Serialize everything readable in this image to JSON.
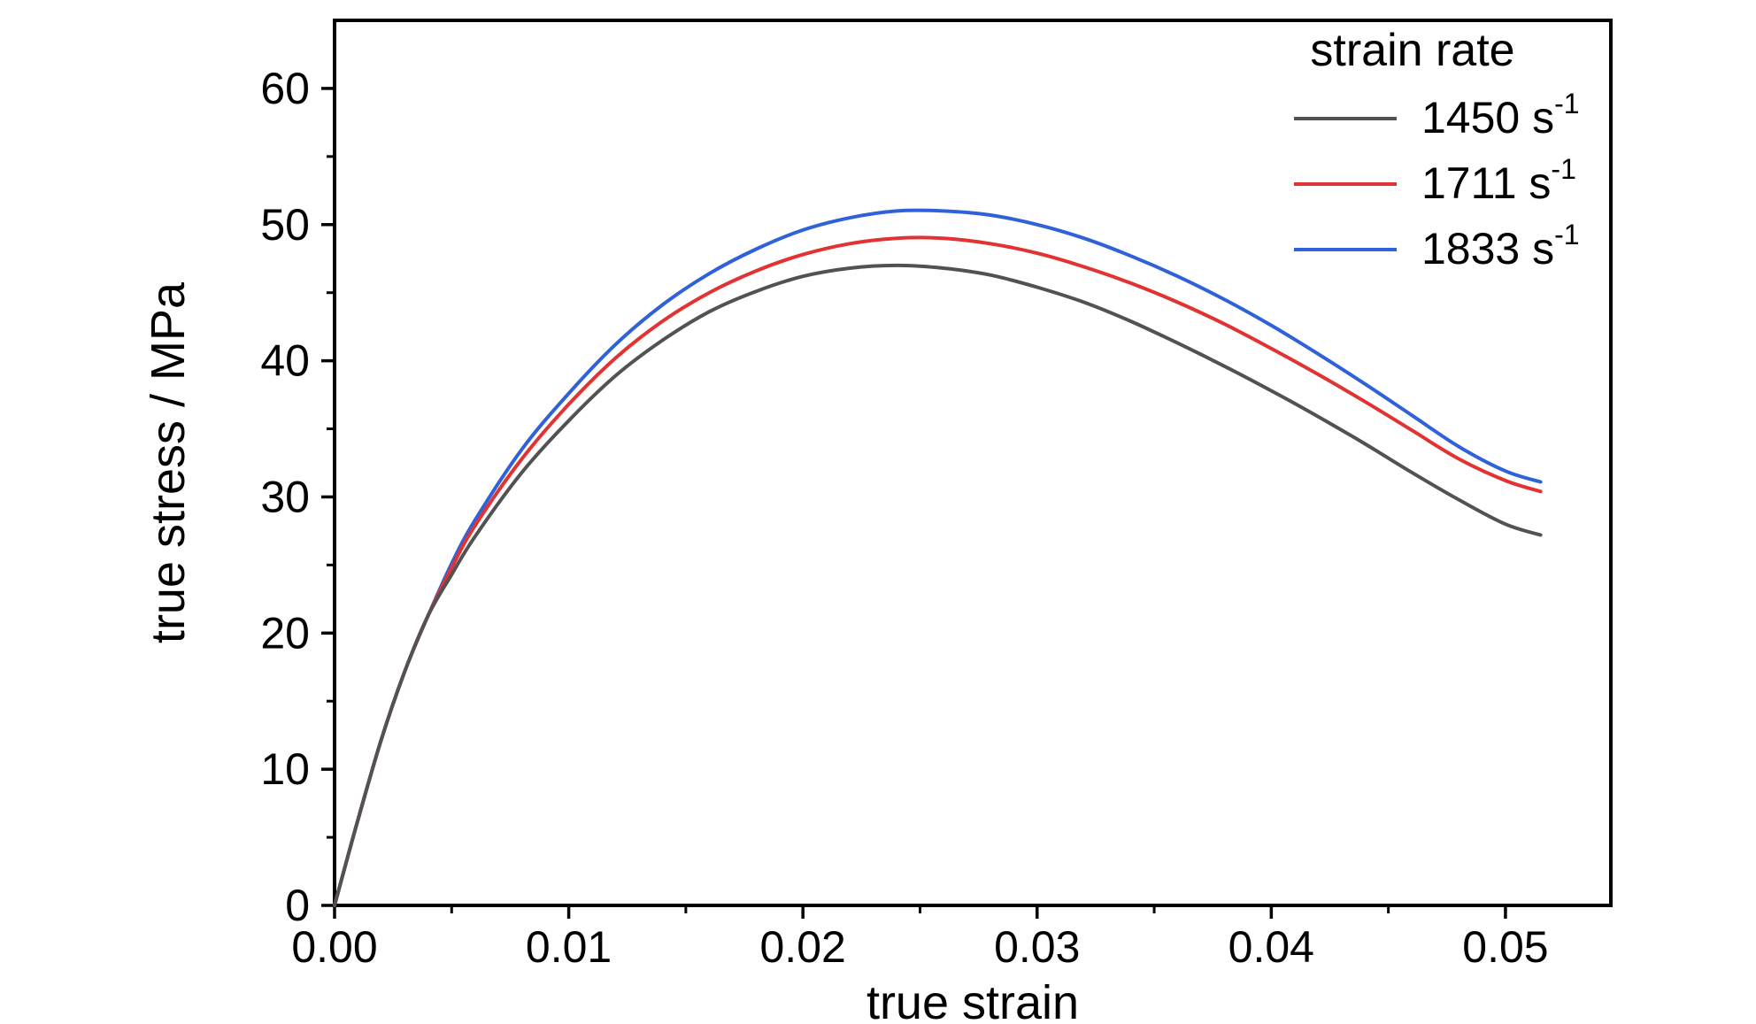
{
  "figure": {
    "background": "#ffffff",
    "text_color": "#000000",
    "axis_color": "#000000"
  },
  "chart_data": {
    "type": "line",
    "title": "",
    "xlabel": "true strain",
    "ylabel": "true stress / MPa",
    "xlim": [
      0,
      0.0545
    ],
    "ylim": [
      0,
      65
    ],
    "xticks": [
      0,
      0.01,
      0.02,
      0.03,
      0.04,
      0.05
    ],
    "xtick_labels": [
      "0.00",
      "0.01",
      "0.02",
      "0.03",
      "0.04",
      "0.05"
    ],
    "yticks": [
      0,
      10,
      20,
      30,
      40,
      50,
      60
    ],
    "ytick_labels": [
      "0",
      "10",
      "20",
      "30",
      "40",
      "50",
      "60"
    ],
    "x_minor_ticks": [
      0.005,
      0.015,
      0.025,
      0.035,
      0.045
    ],
    "y_minor_ticks": [
      5,
      15,
      25,
      35,
      45,
      55
    ],
    "grid": false,
    "legend": {
      "title": "strain rate",
      "position": "top-right",
      "entries": [
        {
          "label": "1450 s",
          "sup": "-1"
        },
        {
          "label": "1711 s",
          "sup": "-1"
        },
        {
          "label": "1833 s",
          "sup": "-1"
        }
      ]
    },
    "series": [
      {
        "name": "1450 s-1",
        "color": "#525252",
        "x": [
          0,
          0.001,
          0.002,
          0.003,
          0.004,
          0.005,
          0.006,
          0.008,
          0.01,
          0.012,
          0.014,
          0.016,
          0.018,
          0.02,
          0.022,
          0.024,
          0.026,
          0.028,
          0.03,
          0.032,
          0.034,
          0.036,
          0.038,
          0.04,
          0.042,
          0.044,
          0.046,
          0.048,
          0.05,
          0.0515
        ],
        "y": [
          0,
          6.3,
          12.2,
          17.2,
          21.3,
          24.3,
          27.1,
          31.8,
          35.6,
          38.9,
          41.5,
          43.6,
          45.1,
          46.2,
          46.8,
          47.0,
          46.8,
          46.3,
          45.4,
          44.3,
          42.9,
          41.3,
          39.6,
          37.8,
          35.9,
          33.9,
          31.8,
          29.8,
          28.0,
          27.2
        ]
      },
      {
        "name": "1711 s-1",
        "color": "#e23231",
        "x": [
          0,
          0.001,
          0.002,
          0.003,
          0.004,
          0.005,
          0.006,
          0.008,
          0.01,
          0.012,
          0.014,
          0.016,
          0.018,
          0.02,
          0.022,
          0.024,
          0.026,
          0.028,
          0.03,
          0.032,
          0.034,
          0.036,
          0.038,
          0.04,
          0.042,
          0.044,
          0.046,
          0.048,
          0.05,
          0.0515
        ],
        "y": [
          0,
          6.3,
          12.2,
          17.2,
          21.3,
          24.8,
          27.9,
          32.8,
          36.8,
          40.2,
          42.9,
          45.0,
          46.6,
          47.8,
          48.6,
          49.0,
          49.0,
          48.6,
          47.9,
          46.9,
          45.7,
          44.3,
          42.7,
          40.9,
          39.0,
          37.0,
          34.9,
          32.8,
          31.2,
          30.4
        ]
      },
      {
        "name": "1833 s-1",
        "color": "#2f62d8",
        "x": [
          0,
          0.001,
          0.002,
          0.003,
          0.004,
          0.005,
          0.006,
          0.008,
          0.01,
          0.012,
          0.014,
          0.016,
          0.018,
          0.02,
          0.022,
          0.024,
          0.026,
          0.028,
          0.03,
          0.032,
          0.034,
          0.036,
          0.038,
          0.04,
          0.042,
          0.044,
          0.046,
          0.048,
          0.05,
          0.0515
        ],
        "y": [
          0,
          6.3,
          12.2,
          17.2,
          21.3,
          25.1,
          28.3,
          33.5,
          37.6,
          41.2,
          44.1,
          46.4,
          48.2,
          49.6,
          50.5,
          51.0,
          51.0,
          50.7,
          50.0,
          49.0,
          47.7,
          46.2,
          44.5,
          42.6,
          40.5,
          38.3,
          36.0,
          33.7,
          31.9,
          31.1
        ]
      }
    ]
  }
}
